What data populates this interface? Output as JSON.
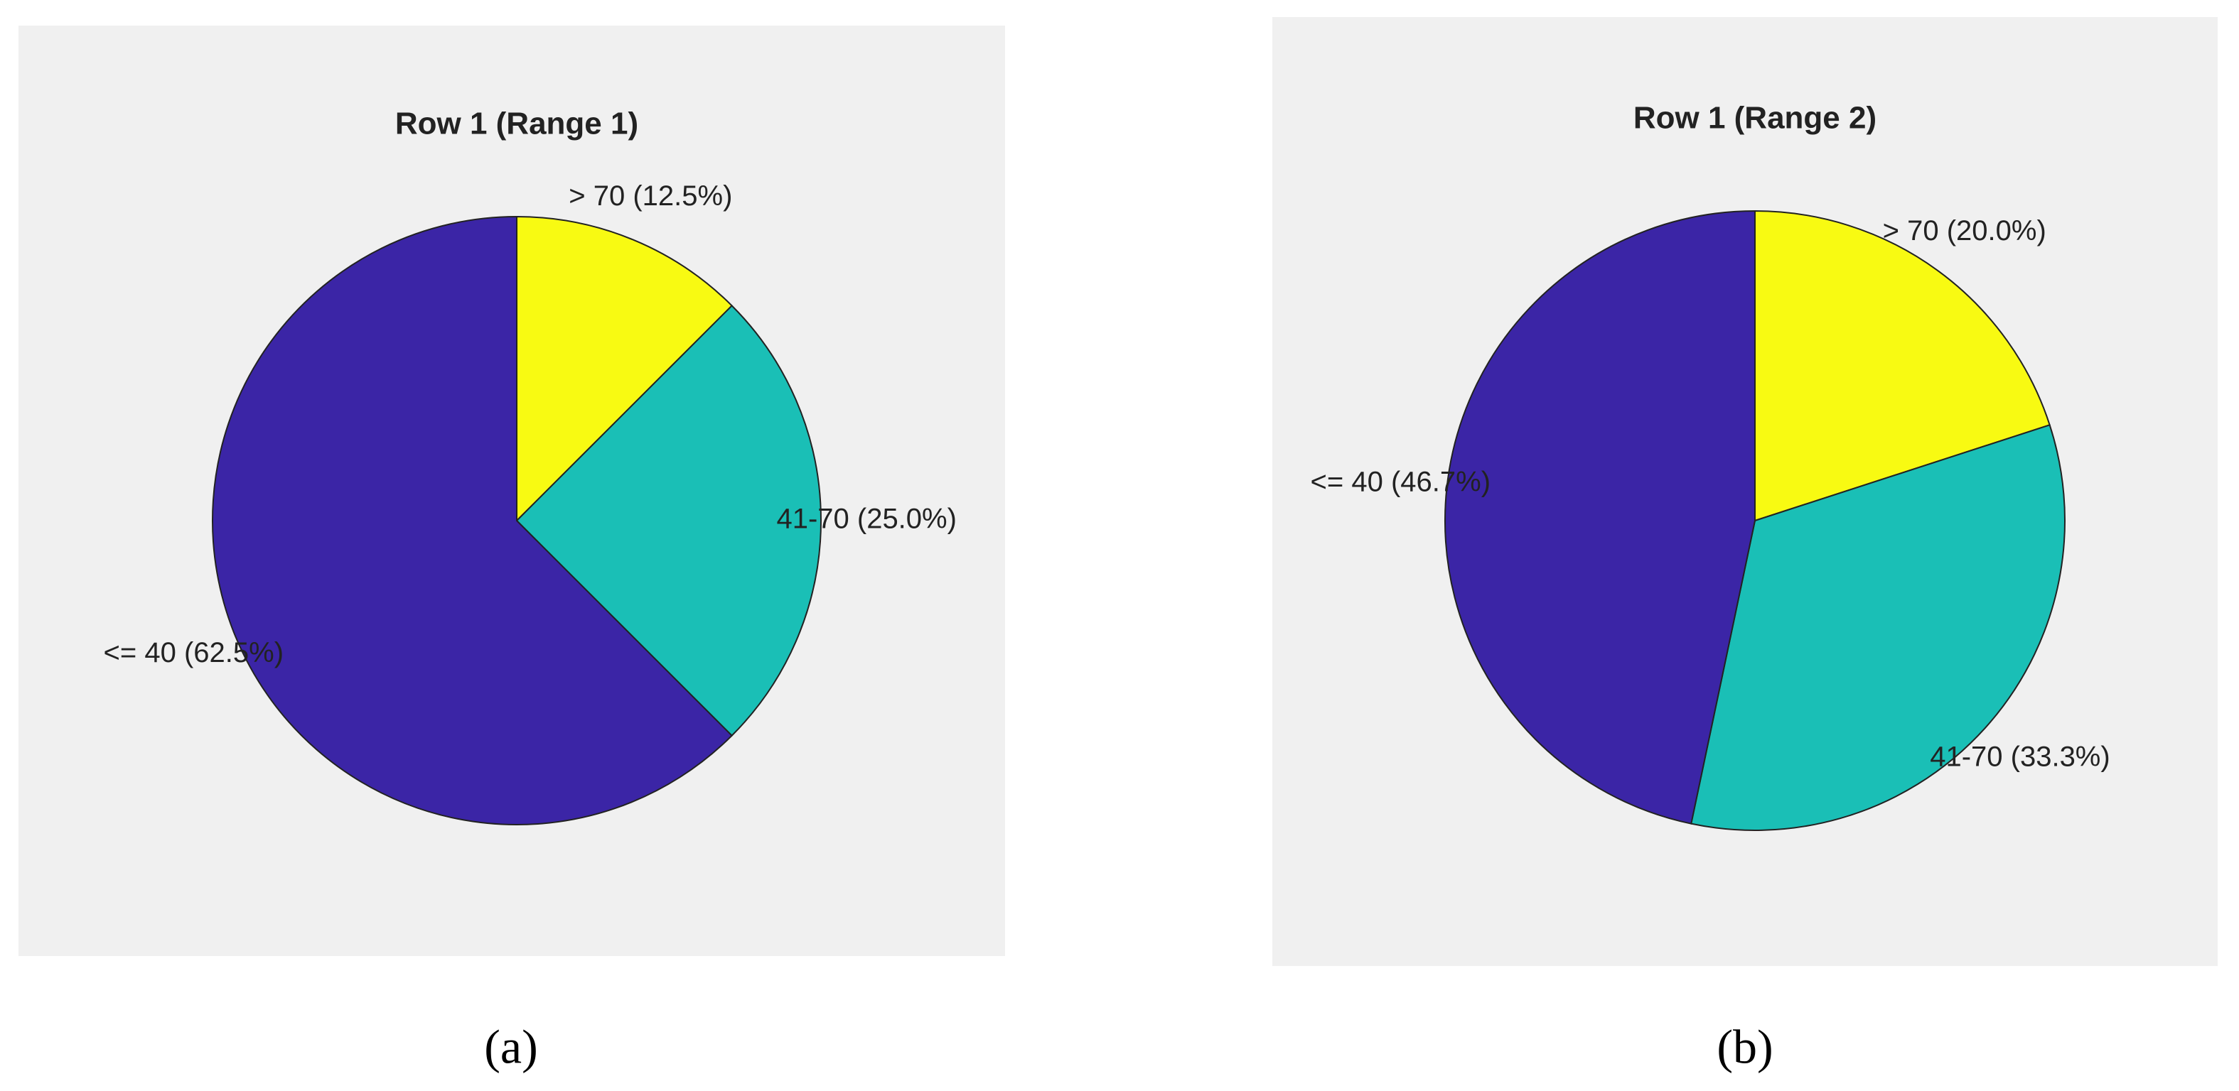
{
  "chart_data": [
    {
      "type": "pie",
      "title": "Row 1 (Range 1)",
      "caption": "(a)",
      "values": [
        12.5,
        25.0,
        62.5
      ],
      "value_labels": [
        "> 70 (12.5%)",
        "41-70 (25.0%)",
        "<= 40 (62.5%)"
      ],
      "colors": [
        "#f8fa12",
        "#1abfb6",
        "#3b25a6"
      ]
    },
    {
      "type": "pie",
      "title": "Row 1 (Range 2)",
      "caption": "(b)",
      "values": [
        20.0,
        33.3,
        46.7
      ],
      "value_labels": [
        "> 70 (20.0%)",
        "41-70 (33.3%)",
        "<= 40 (46.7%)"
      ],
      "colors": [
        "#f8fa12",
        "#1abfb6",
        "#3b25a6"
      ]
    }
  ]
}
